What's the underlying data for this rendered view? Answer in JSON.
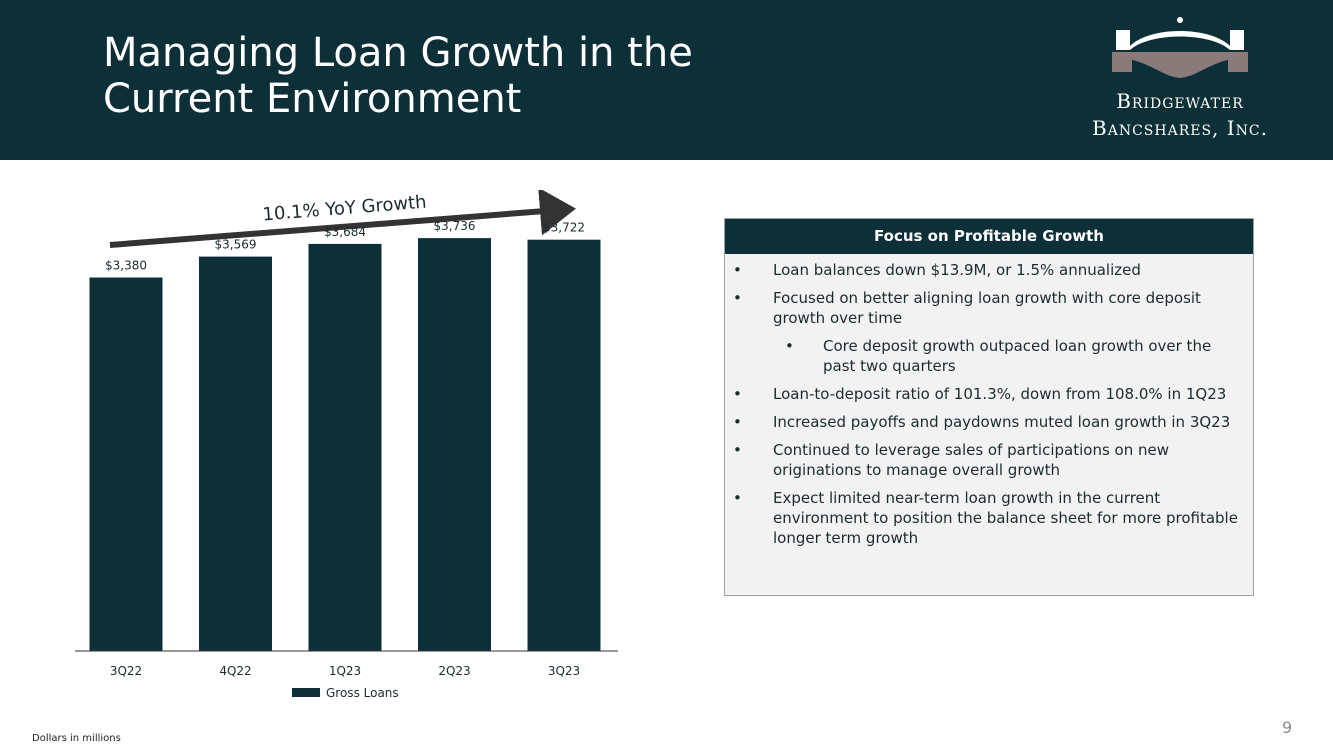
{
  "header": {
    "title_line1": "Managing Loan Growth in the",
    "title_line2": "Current Environment",
    "logo_line1": "Bridgewater",
    "logo_line2": "Bancshares, Inc."
  },
  "colors": {
    "primary": "#0d3038",
    "accent": "#8b7a7a",
    "arrow": "#333333",
    "box_bg": "#f2f2f2"
  },
  "chart_data": {
    "type": "bar",
    "categories": [
      "3Q22",
      "4Q22",
      "1Q23",
      "2Q23",
      "3Q23"
    ],
    "series": [
      {
        "name": "Gross Loans",
        "values": [
          3380,
          3569,
          3684,
          3736,
          3722
        ]
      }
    ],
    "value_labels": [
      "$3,380",
      "$3,569",
      "$3,684",
      "$3,736",
      "$3,722"
    ],
    "annotation": "10.1% YoY Growth",
    "ylim": [
      0,
      3900
    ],
    "legend_position": "bottom",
    "grid": false,
    "xlabel": "",
    "ylabel": ""
  },
  "focus_box": {
    "title": "Focus on Profitable Growth",
    "bullet_char": "•",
    "items": [
      {
        "text": "Loan balances down $13.9M, or 1.5% annualized"
      },
      {
        "text": "Focused on better aligning loan growth with core deposit growth over time"
      },
      {
        "text": "Core deposit growth outpaced loan growth over the past two quarters"
      },
      {
        "text": "Loan-to-deposit ratio of 101.3%, down from 108.0% in 1Q23"
      },
      {
        "text": "Increased payoffs and paydowns muted loan growth in 3Q23"
      },
      {
        "text": "Continued to leverage sales of participations on new originations to manage overall growth"
      },
      {
        "text": "Expect limited near-term loan growth in the current environment to position the balance sheet for more profitable longer term growth"
      }
    ]
  },
  "footer": {
    "footnote": "Dollars in millions",
    "page_number": "9"
  }
}
